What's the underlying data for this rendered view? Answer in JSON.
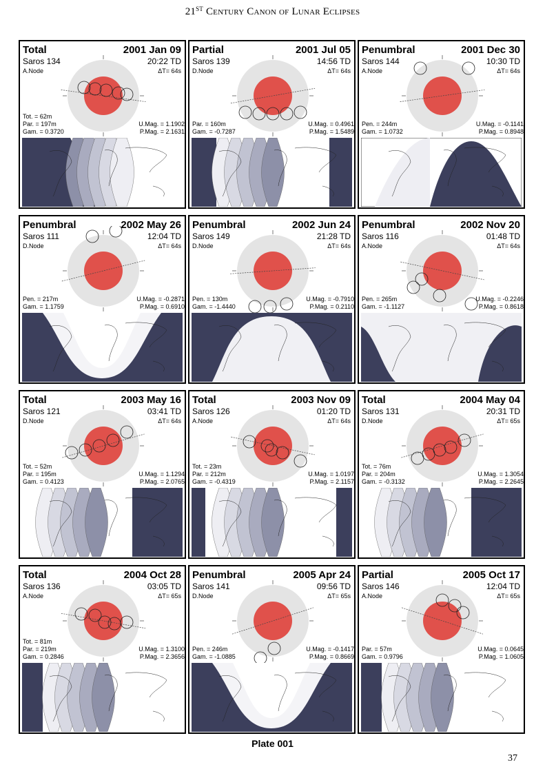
{
  "header": {
    "number": "21",
    "superscript": "ST",
    "title": "Century Canon of Lunar Eclipses"
  },
  "panels": [
    {
      "type": "Total",
      "date": "2001 Jan 09",
      "saros": "Saros 134",
      "time": "20:22 TD",
      "node": "A.Node",
      "dt": "ΔT=    64s",
      "tot": "Tot. =  62m",
      "par": "Par. = 197m",
      "gam": "Gam. = 0.3720",
      "umag": "U.Mag. = 1.1902",
      "pmag": "P.Mag. = 2.1631"
    },
    {
      "type": "Partial",
      "date": "2001 Jul 05",
      "saros": "Saros 139",
      "time": "14:56 TD",
      "node": "D.Node",
      "dt": "ΔT=    64s",
      "tot": "",
      "par": "Par. = 160m",
      "gam": "Gam. = -0.7287",
      "umag": "U.Mag. = 0.4961",
      "pmag": "P.Mag. = 1.5489"
    },
    {
      "type": "Penumbral",
      "date": "2001 Dec 30",
      "saros": "Saros 144",
      "time": "10:30 TD",
      "node": "A.Node",
      "dt": "ΔT=    64s",
      "tot": "",
      "par": "Pen. = 244m",
      "gam": "Gam. = 1.0732",
      "umag": "U.Mag. = -0.1141",
      "pmag": "P.Mag. = 0.8948"
    },
    {
      "type": "Penumbral",
      "date": "2002 May 26",
      "saros": "Saros 111",
      "time": "12:04 TD",
      "node": "D.Node",
      "dt": "ΔT=    64s",
      "tot": "",
      "par": "Pen. = 217m",
      "gam": "Gam. = 1.1759",
      "umag": "U.Mag. = -0.2871",
      "pmag": "P.Mag. = 0.6910"
    },
    {
      "type": "Penumbral",
      "date": "2002 Jun 24",
      "saros": "Saros 149",
      "time": "21:28 TD",
      "node": "D.Node",
      "dt": "ΔT=    64s",
      "tot": "",
      "par": "Pen. = 130m",
      "gam": "Gam. = -1.4440",
      "umag": "U.Mag. = -0.7910",
      "pmag": "P.Mag. = 0.2110"
    },
    {
      "type": "Penumbral",
      "date": "2002 Nov 20",
      "saros": "Saros 116",
      "time": "01:48 TD",
      "node": "A.Node",
      "dt": "ΔT=    64s",
      "tot": "",
      "par": "Pen. = 265m",
      "gam": "Gam. = -1.1127",
      "umag": "U.Mag. = -0.2246",
      "pmag": "P.Mag. = 0.8618"
    },
    {
      "type": "Total",
      "date": "2003 May 16",
      "saros": "Saros 121",
      "time": "03:41 TD",
      "node": "D.Node",
      "dt": "ΔT=    64s",
      "tot": "Tot. =  52m",
      "par": "Par. = 195m",
      "gam": "Gam. = 0.4123",
      "umag": "U.Mag. = 1.1294",
      "pmag": "P.Mag. = 2.0765"
    },
    {
      "type": "Total",
      "date": "2003 Nov 09",
      "saros": "Saros 126",
      "time": "01:20 TD",
      "node": "A.Node",
      "dt": "ΔT=    64s",
      "tot": "Tot. =  23m",
      "par": "Par. = 212m",
      "gam": "Gam. = -0.4319",
      "umag": "U.Mag. = 1.0197",
      "pmag": "P.Mag. = 2.1157"
    },
    {
      "type": "Total",
      "date": "2004 May 04",
      "saros": "Saros 131",
      "time": "20:31 TD",
      "node": "D.Node",
      "dt": "ΔT=    65s",
      "tot": "Tot. =  76m",
      "par": "Par. = 204m",
      "gam": "Gam. = -0.3132",
      "umag": "U.Mag. = 1.3054",
      "pmag": "P.Mag. = 2.2645"
    },
    {
      "type": "Total",
      "date": "2004 Oct 28",
      "saros": "Saros 136",
      "time": "03:05 TD",
      "node": "A.Node",
      "dt": "ΔT=    65s",
      "tot": "Tot. =  81m",
      "par": "Par. = 219m",
      "gam": "Gam. = 0.2846",
      "umag": "U.Mag. = 1.3100",
      "pmag": "P.Mag. = 2.3656"
    },
    {
      "type": "Penumbral",
      "date": "2005 Apr 24",
      "saros": "Saros 141",
      "time": "09:56 TD",
      "node": "D.Node",
      "dt": "ΔT=    65s",
      "tot": "",
      "par": "Pen. = 246m",
      "gam": "Gam. = -1.0885",
      "umag": "U.Mag. = -0.1417",
      "pmag": "P.Mag. = 0.8669"
    },
    {
      "type": "Partial",
      "date": "2005 Oct 17",
      "saros": "Saros 146",
      "time": "12:04 TD",
      "node": "A.Node",
      "dt": "ΔT=    65s",
      "tot": "",
      "par": "Par. =  57m",
      "gam": "Gam. = 0.9796",
      "umag": "U.Mag. = 0.0645",
      "pmag": "P.Mag. = 1.0605"
    }
  ],
  "plate_label": "Plate 001",
  "page_number": "37",
  "colors": {
    "umbra": "#e0514b",
    "penumbra": "#e4e4e4",
    "night": "#3c3f5c"
  }
}
